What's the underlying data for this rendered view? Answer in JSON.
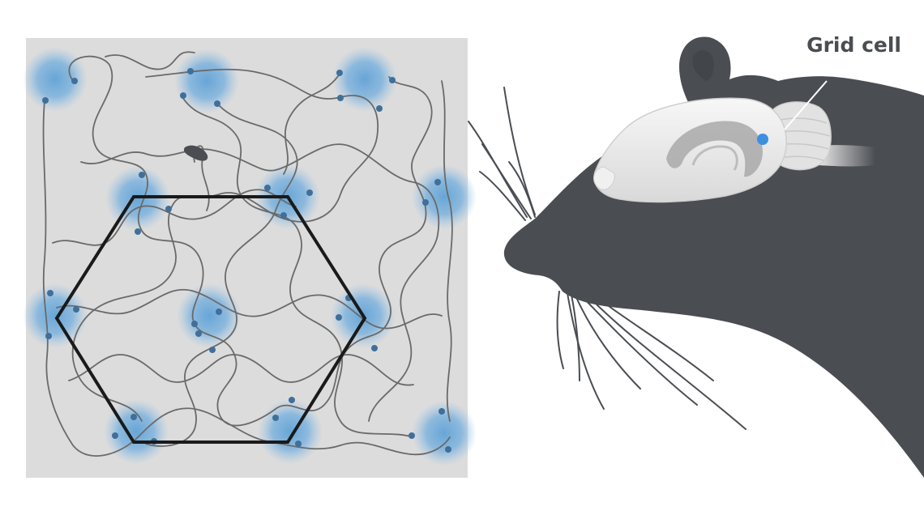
{
  "label": {
    "text": "Grid cell"
  },
  "colors": {
    "background": "#ffffff",
    "arena": "#dcdcdc",
    "trajectory": "#6a6a6a",
    "firing_field": "#5a9fd6",
    "spike": "#3f6f9a",
    "hexagon": "#1a1a1a",
    "rat": "#4a4d52",
    "brain": "#ececec",
    "hippocampus": "#a9a9a9",
    "grid_cell_marker": "#3d8fe0",
    "label": "#4a4d52"
  },
  "icons": {
    "rat": "rat-head-silhouette",
    "brain": "rat-brain",
    "hippocampus": "hippocampus-shape",
    "grid_cell": "blue-dot-marker"
  }
}
